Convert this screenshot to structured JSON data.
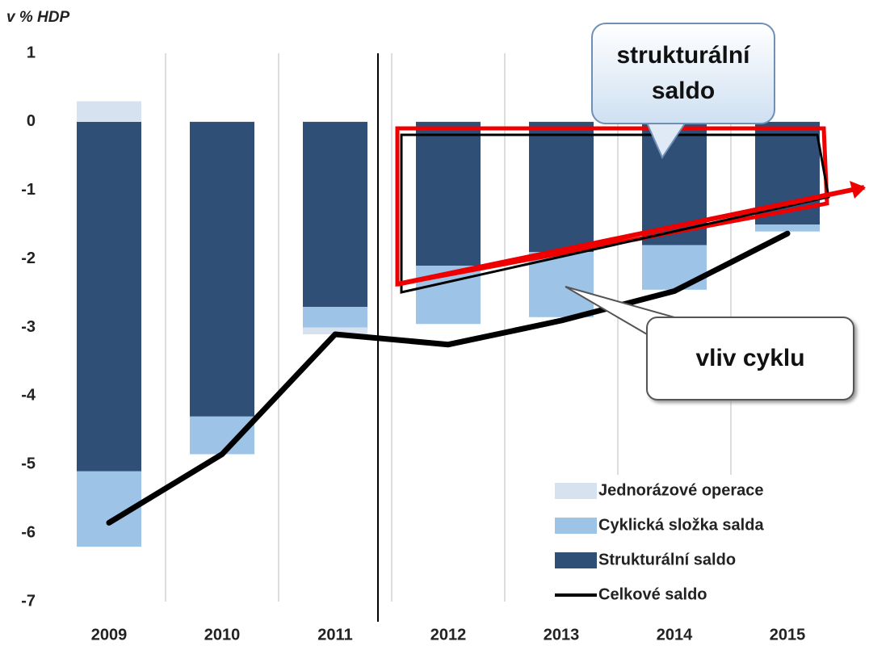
{
  "chart_data": {
    "type": "bar",
    "ylabel": "v % HDP",
    "categories": [
      "2009",
      "2010",
      "2011",
      "2012",
      "2013",
      "2014",
      "2015"
    ],
    "series": [
      {
        "name": "Strukturální saldo",
        "color": "#2f4f77",
        "values": [
          -5.1,
          -4.3,
          -2.7,
          -2.1,
          -1.9,
          -1.8,
          -1.5
        ]
      },
      {
        "name": "Cyklická složka salda",
        "color": "#9dc3e6",
        "values": [
          -1.1,
          -0.55,
          -0.3,
          -0.85,
          -0.95,
          -0.65,
          -0.1
        ]
      },
      {
        "name": "Jednorázové operace",
        "color": "#d6e2f0",
        "values": [
          0.3,
          0,
          -0.1,
          0,
          0,
          0,
          0
        ]
      },
      {
        "name": "Celkové saldo",
        "type": "line",
        "color": "#000000",
        "values": [
          -5.85,
          -4.85,
          -3.1,
          -3.25,
          -2.9,
          -2.47,
          -1.63
        ]
      }
    ],
    "ylim": [
      -7,
      1
    ],
    "yticks": [
      1,
      0,
      -1,
      -2,
      -3,
      -4,
      -5,
      -6,
      -7
    ],
    "grid": "x",
    "legend": "lower right",
    "annotations": [
      "strukturální saldo",
      "vliv cyklu"
    ]
  }
}
